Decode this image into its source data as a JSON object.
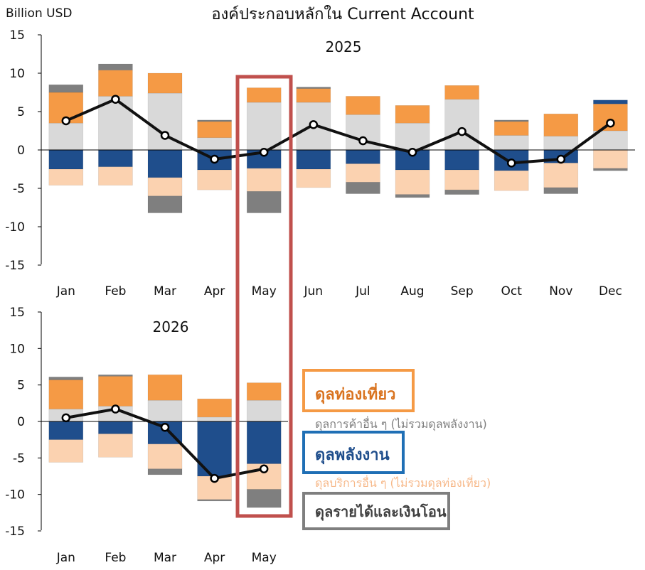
{
  "title": "องค์ประกอบหลักใน Current Account",
  "unit_label": "Billion USD",
  "colors": {
    "tourism": "#f59a45",
    "other_trade": "#d9d9d9",
    "energy": "#1f4e8c",
    "other_services": "#fbd2b0",
    "income": "#7f7f7f",
    "line": "#111111",
    "highlight": "#c0504d"
  },
  "legend": {
    "tourism": "ดุลท่องเที่ยว",
    "other_trade": "ดุลการค้าอื่น ๆ (ไม่รวมดุลพลังงาน)",
    "energy": "ดุลพลังงาน",
    "other_services": "ดุลบริการอื่น ๆ (ไม่รวมดุลท่องเที่ยว)",
    "income": "ดุลรายได้และเงินโอน"
  },
  "chart_data": [
    {
      "type": "bar",
      "stacked": true,
      "title": "2025",
      "ylim": [
        -15,
        15
      ],
      "yticks": [
        "15",
        "10",
        "5",
        "0",
        "-5",
        "-10",
        "-15"
      ],
      "categories": [
        "Jan",
        "Feb",
        "Mar",
        "Apr",
        "May",
        "Jun",
        "Jul",
        "Aug",
        "Sep",
        "Oct",
        "Nov",
        "Dec"
      ],
      "series": [
        {
          "key": "other_trade",
          "values": [
            3.5,
            7.0,
            7.4,
            1.6,
            6.2,
            6.2,
            4.6,
            3.5,
            6.6,
            1.9,
            1.8,
            2.5
          ]
        },
        {
          "key": "tourism",
          "values": [
            4.0,
            3.4,
            2.6,
            2.1,
            1.9,
            1.8,
            2.4,
            2.3,
            1.8,
            1.8,
            2.9,
            3.5
          ]
        },
        {
          "key": "energy",
          "values": [
            -2.5,
            -2.2,
            -3.6,
            -2.6,
            -2.4,
            -2.5,
            -1.8,
            -2.6,
            -2.6,
            -2.7,
            -1.7,
            0.5
          ]
        },
        {
          "key": "other_services",
          "values": [
            -2.1,
            -2.4,
            -2.4,
            -2.6,
            -3.0,
            -2.4,
            -2.4,
            -3.2,
            -2.6,
            -2.6,
            -3.2,
            -2.4
          ]
        },
        {
          "key": "income",
          "values": [
            1.0,
            0.8,
            -2.2,
            0.2,
            -2.8,
            0.2,
            -1.5,
            -0.4,
            -0.6,
            0.2,
            -0.8,
            -0.3
          ]
        }
      ],
      "line": [
        3.8,
        6.6,
        1.9,
        -1.2,
        -0.3,
        3.3,
        1.2,
        -0.3,
        2.4,
        -1.7,
        -1.2,
        3.5
      ],
      "highlight_index": 4
    },
    {
      "type": "bar",
      "stacked": true,
      "title": "2026",
      "ylim": [
        -15,
        15
      ],
      "yticks": [
        "15",
        "10",
        "5",
        "0",
        "-5",
        "-10",
        "-15"
      ],
      "categories": [
        "Jan",
        "Feb",
        "Mar",
        "Apr",
        "May"
      ],
      "series": [
        {
          "key": "other_trade",
          "values": [
            1.7,
            2.1,
            2.9,
            0.6,
            2.9
          ]
        },
        {
          "key": "tourism",
          "values": [
            4.0,
            4.1,
            3.5,
            2.5,
            2.4
          ]
        },
        {
          "key": "energy",
          "values": [
            -2.5,
            -1.7,
            -3.1,
            -7.5,
            -5.8
          ]
        },
        {
          "key": "other_services",
          "values": [
            -3.1,
            -3.2,
            -3.4,
            -3.2,
            -3.5
          ]
        },
        {
          "key": "income",
          "values": [
            0.4,
            0.2,
            -0.8,
            -0.2,
            -2.5
          ]
        }
      ],
      "line": [
        0.5,
        1.7,
        -0.8,
        -7.8,
        -6.5
      ]
    }
  ]
}
